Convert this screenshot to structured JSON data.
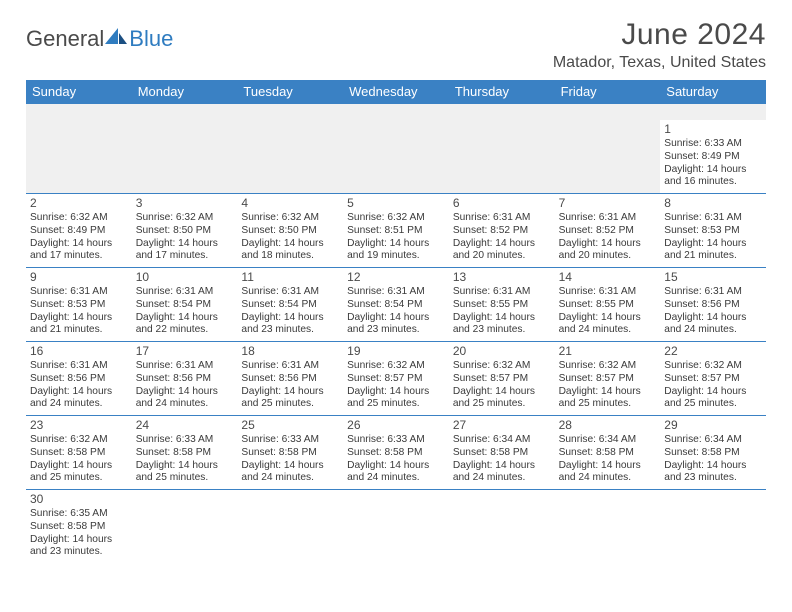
{
  "logo": {
    "text1": "General",
    "text2": "Blue"
  },
  "colors": {
    "brand_blue": "#3a81c4",
    "text_gray": "#4a4a4a",
    "blank_bg": "#f0f0f0",
    "white": "#ffffff"
  },
  "header": {
    "month": "June 2024",
    "location": "Matador, Texas, United States"
  },
  "daynames": [
    "Sunday",
    "Monday",
    "Tuesday",
    "Wednesday",
    "Thursday",
    "Friday",
    "Saturday"
  ],
  "weeks": [
    [
      null,
      null,
      null,
      null,
      null,
      null,
      {
        "n": "1",
        "sr": "Sunrise: 6:33 AM",
        "ss": "Sunset: 8:49 PM",
        "d1": "Daylight: 14 hours",
        "d2": "and 16 minutes."
      }
    ],
    [
      {
        "n": "2",
        "sr": "Sunrise: 6:32 AM",
        "ss": "Sunset: 8:49 PM",
        "d1": "Daylight: 14 hours",
        "d2": "and 17 minutes."
      },
      {
        "n": "3",
        "sr": "Sunrise: 6:32 AM",
        "ss": "Sunset: 8:50 PM",
        "d1": "Daylight: 14 hours",
        "d2": "and 17 minutes."
      },
      {
        "n": "4",
        "sr": "Sunrise: 6:32 AM",
        "ss": "Sunset: 8:50 PM",
        "d1": "Daylight: 14 hours",
        "d2": "and 18 minutes."
      },
      {
        "n": "5",
        "sr": "Sunrise: 6:32 AM",
        "ss": "Sunset: 8:51 PM",
        "d1": "Daylight: 14 hours",
        "d2": "and 19 minutes."
      },
      {
        "n": "6",
        "sr": "Sunrise: 6:31 AM",
        "ss": "Sunset: 8:52 PM",
        "d1": "Daylight: 14 hours",
        "d2": "and 20 minutes."
      },
      {
        "n": "7",
        "sr": "Sunrise: 6:31 AM",
        "ss": "Sunset: 8:52 PM",
        "d1": "Daylight: 14 hours",
        "d2": "and 20 minutes."
      },
      {
        "n": "8",
        "sr": "Sunrise: 6:31 AM",
        "ss": "Sunset: 8:53 PM",
        "d1": "Daylight: 14 hours",
        "d2": "and 21 minutes."
      }
    ],
    [
      {
        "n": "9",
        "sr": "Sunrise: 6:31 AM",
        "ss": "Sunset: 8:53 PM",
        "d1": "Daylight: 14 hours",
        "d2": "and 21 minutes."
      },
      {
        "n": "10",
        "sr": "Sunrise: 6:31 AM",
        "ss": "Sunset: 8:54 PM",
        "d1": "Daylight: 14 hours",
        "d2": "and 22 minutes."
      },
      {
        "n": "11",
        "sr": "Sunrise: 6:31 AM",
        "ss": "Sunset: 8:54 PM",
        "d1": "Daylight: 14 hours",
        "d2": "and 23 minutes."
      },
      {
        "n": "12",
        "sr": "Sunrise: 6:31 AM",
        "ss": "Sunset: 8:54 PM",
        "d1": "Daylight: 14 hours",
        "d2": "and 23 minutes."
      },
      {
        "n": "13",
        "sr": "Sunrise: 6:31 AM",
        "ss": "Sunset: 8:55 PM",
        "d1": "Daylight: 14 hours",
        "d2": "and 23 minutes."
      },
      {
        "n": "14",
        "sr": "Sunrise: 6:31 AM",
        "ss": "Sunset: 8:55 PM",
        "d1": "Daylight: 14 hours",
        "d2": "and 24 minutes."
      },
      {
        "n": "15",
        "sr": "Sunrise: 6:31 AM",
        "ss": "Sunset: 8:56 PM",
        "d1": "Daylight: 14 hours",
        "d2": "and 24 minutes."
      }
    ],
    [
      {
        "n": "16",
        "sr": "Sunrise: 6:31 AM",
        "ss": "Sunset: 8:56 PM",
        "d1": "Daylight: 14 hours",
        "d2": "and 24 minutes."
      },
      {
        "n": "17",
        "sr": "Sunrise: 6:31 AM",
        "ss": "Sunset: 8:56 PM",
        "d1": "Daylight: 14 hours",
        "d2": "and 24 minutes."
      },
      {
        "n": "18",
        "sr": "Sunrise: 6:31 AM",
        "ss": "Sunset: 8:56 PM",
        "d1": "Daylight: 14 hours",
        "d2": "and 25 minutes."
      },
      {
        "n": "19",
        "sr": "Sunrise: 6:32 AM",
        "ss": "Sunset: 8:57 PM",
        "d1": "Daylight: 14 hours",
        "d2": "and 25 minutes."
      },
      {
        "n": "20",
        "sr": "Sunrise: 6:32 AM",
        "ss": "Sunset: 8:57 PM",
        "d1": "Daylight: 14 hours",
        "d2": "and 25 minutes."
      },
      {
        "n": "21",
        "sr": "Sunrise: 6:32 AM",
        "ss": "Sunset: 8:57 PM",
        "d1": "Daylight: 14 hours",
        "d2": "and 25 minutes."
      },
      {
        "n": "22",
        "sr": "Sunrise: 6:32 AM",
        "ss": "Sunset: 8:57 PM",
        "d1": "Daylight: 14 hours",
        "d2": "and 25 minutes."
      }
    ],
    [
      {
        "n": "23",
        "sr": "Sunrise: 6:32 AM",
        "ss": "Sunset: 8:58 PM",
        "d1": "Daylight: 14 hours",
        "d2": "and 25 minutes."
      },
      {
        "n": "24",
        "sr": "Sunrise: 6:33 AM",
        "ss": "Sunset: 8:58 PM",
        "d1": "Daylight: 14 hours",
        "d2": "and 25 minutes."
      },
      {
        "n": "25",
        "sr": "Sunrise: 6:33 AM",
        "ss": "Sunset: 8:58 PM",
        "d1": "Daylight: 14 hours",
        "d2": "and 24 minutes."
      },
      {
        "n": "26",
        "sr": "Sunrise: 6:33 AM",
        "ss": "Sunset: 8:58 PM",
        "d1": "Daylight: 14 hours",
        "d2": "and 24 minutes."
      },
      {
        "n": "27",
        "sr": "Sunrise: 6:34 AM",
        "ss": "Sunset: 8:58 PM",
        "d1": "Daylight: 14 hours",
        "d2": "and 24 minutes."
      },
      {
        "n": "28",
        "sr": "Sunrise: 6:34 AM",
        "ss": "Sunset: 8:58 PM",
        "d1": "Daylight: 14 hours",
        "d2": "and 24 minutes."
      },
      {
        "n": "29",
        "sr": "Sunrise: 6:34 AM",
        "ss": "Sunset: 8:58 PM",
        "d1": "Daylight: 14 hours",
        "d2": "and 23 minutes."
      }
    ],
    [
      {
        "n": "30",
        "sr": "Sunrise: 6:35 AM",
        "ss": "Sunset: 8:58 PM",
        "d1": "Daylight: 14 hours",
        "d2": "and 23 minutes."
      },
      null,
      null,
      null,
      null,
      null,
      null
    ]
  ]
}
